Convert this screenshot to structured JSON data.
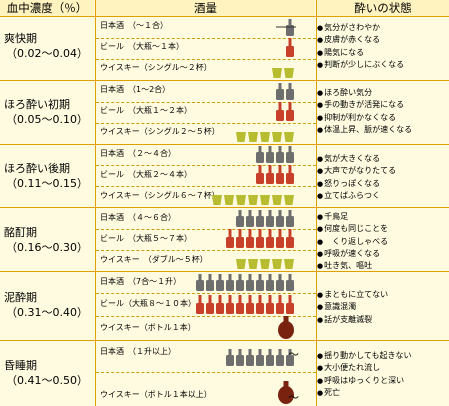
{
  "headers": {
    "bac": "血中濃度（％）",
    "amount": "酒量",
    "state": "酔いの状態"
  },
  "colors": {
    "sake": "#6e6e6e",
    "beer": "#c8402a",
    "whisky_glass": "#b8bc30",
    "whisky_bottle": "#7a2210",
    "line": "#e0a000",
    "bg": "#fffbe0"
  },
  "stages": [
    {
      "name": "爽快期",
      "range": "（0.02〜0.04）",
      "drinks": [
        "日本酒　（〜１合）",
        "ビール　（大瓶〜１本）",
        "ウイスキー（シングル〜２杯）"
      ],
      "effects": [
        "気分がさわやか",
        "皮膚が赤くなる",
        "陽気になる",
        "判断が少しにぶくなる"
      ]
    },
    {
      "name": "ほろ酔い初期",
      "range": "（0.05〜0.10）",
      "drinks": [
        "日本酒　（1〜2合）",
        "ビール　（大瓶１〜２本）",
        "ウイスキー（シングル２〜５杯）"
      ],
      "effects": [
        "ほろ酔い気分",
        "手の動きが活発になる",
        "抑制が利かなくなる",
        "体温上昇、脈が速くなる"
      ]
    },
    {
      "name": "ほろ酔い後期",
      "range": "（0.11〜0.15）",
      "drinks": [
        "日本酒　（２〜４合）",
        "ビール　（大瓶２〜４本）",
        "ウイスキー（シングル６〜７杯）"
      ],
      "effects": [
        "気が大きくなる",
        "大声でがなりたてる",
        "怒りっぽくなる",
        "立てばふらつく"
      ]
    },
    {
      "name": "酩酊期",
      "range": "（0.16〜0.30）",
      "drinks": [
        "日本酒　（４〜６合）",
        "ビール　（大瓶５〜７本）",
        "ウイスキー　（ダブル〜５杯）"
      ],
      "effects": [
        "千鳥足",
        "何度も同じことを",
        "　くり返しゃべる",
        "呼吸が速くなる",
        "吐き気、嘔吐"
      ]
    },
    {
      "name": "泥酔期",
      "range": "（0.31〜0.40）",
      "drinks": [
        "日本酒　（7合〜１升）",
        "ビール（大瓶８〜１０本）",
        "ウイスキー（ボトル１本）"
      ],
      "effects": [
        "まともに立てない",
        "意識混濁",
        "話が支離滅裂"
      ]
    },
    {
      "name": "昏睡期",
      "range": "（0.41〜0.50）",
      "drinks": [
        "日本酒　（１升以上）",
        "ウイスキー（ボトル１本以上）"
      ],
      "effects": [
        "揺り動かしても起きない",
        "大小便たれ流し",
        "呼吸はゆっくりと深い",
        "死亡"
      ]
    }
  ],
  "tilde": "〜",
  "chart_data": {
    "type": "table",
    "columns": [
      "血中濃度（％）",
      "酒量",
      "酔いの状態"
    ],
    "icon_counts": [
      {
        "sake": 1,
        "beer": 1,
        "whisky": 2
      },
      {
        "sake": 2,
        "beer": 2,
        "whisky": 5
      },
      {
        "sake": 4,
        "beer": 4,
        "whisky": 7
      },
      {
        "sake": 6,
        "beer": 7,
        "whisky": 5
      },
      {
        "sake": 10,
        "beer": 10,
        "whisky_bottle": 1
      },
      {
        "sake": 7,
        "whisky_bottle": 1
      }
    ]
  }
}
